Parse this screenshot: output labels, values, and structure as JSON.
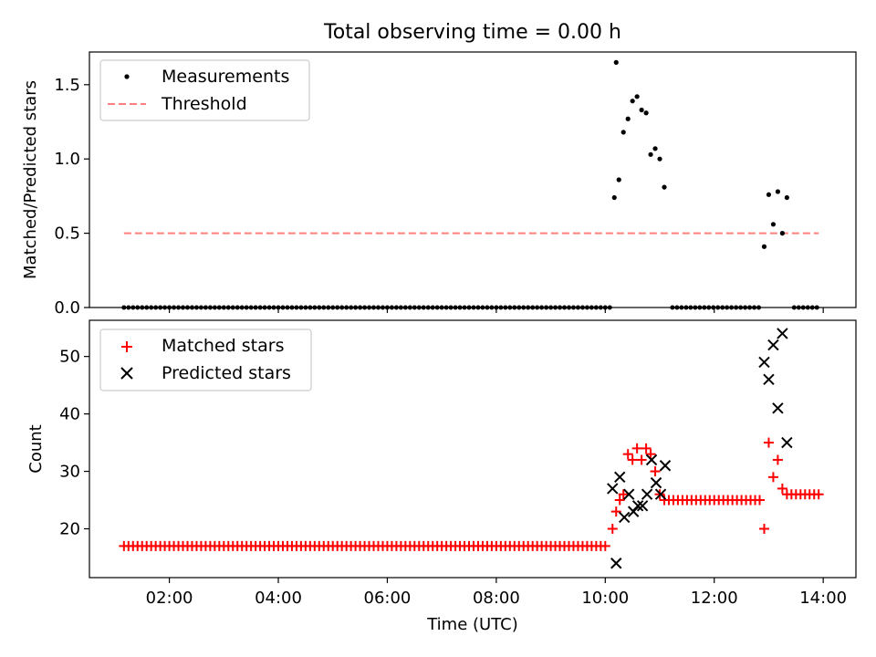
{
  "chart_data": [
    {
      "type": "scatter",
      "title": "Total observing time = 0.00 h",
      "xlabel": "",
      "ylabel": "Matched/Predicted stars",
      "xlim": [
        "00:32",
        "14:36"
      ],
      "ylim": [
        0,
        1.72
      ],
      "yticks": [
        "0.0",
        "0.5",
        "1.0",
        "1.5"
      ],
      "legend_position": "upper-left",
      "threshold": {
        "name": "Threshold",
        "value": 0.5,
        "x_start": "01:10",
        "x_end": "13:55",
        "color": "#ff7f7f"
      },
      "series": [
        {
          "name": "Measurements",
          "color": "#000000",
          "zero_segments": [
            [
              "01:10",
              "10:06"
            ],
            [
              "11:14",
              "12:51"
            ],
            [
              "13:28",
              "13:56"
            ]
          ],
          "zero_step_minutes": 5,
          "points": [
            {
              "x": "10:10",
              "y": 0.74
            },
            {
              "x": "10:15",
              "y": 0.86
            },
            {
              "x": "10:20",
              "y": 1.18
            },
            {
              "x": "10:25",
              "y": 1.27
            },
            {
              "x": "10:30",
              "y": 1.39
            },
            {
              "x": "10:35",
              "y": 1.42
            },
            {
              "x": "10:40",
              "y": 1.33
            },
            {
              "x": "10:45",
              "y": 1.31
            },
            {
              "x": "10:50",
              "y": 1.03
            },
            {
              "x": "10:55",
              "y": 1.07
            },
            {
              "x": "11:00",
              "y": 1.0
            },
            {
              "x": "11:05",
              "y": 0.81
            },
            {
              "x": "12:55",
              "y": 0.41
            },
            {
              "x": "13:00",
              "y": 0.76
            },
            {
              "x": "13:05",
              "y": 0.56
            },
            {
              "x": "13:10",
              "y": 0.78
            },
            {
              "x": "13:15",
              "y": 0.5
            },
            {
              "x": "13:20",
              "y": 0.74
            },
            {
              "x": "10:12",
              "y": 1.65
            }
          ]
        }
      ]
    },
    {
      "type": "scatter",
      "title": "",
      "xlabel": "Time (UTC)",
      "ylabel": "Count",
      "xlim": [
        "00:32",
        "14:36"
      ],
      "ylim": [
        11.5,
        56.3
      ],
      "yticks": [
        "20",
        "30",
        "40",
        "50"
      ],
      "xticks": [
        "02:00",
        "04:00",
        "06:00",
        "08:00",
        "10:00",
        "12:00",
        "14:00"
      ],
      "legend_position": "upper-left",
      "series": [
        {
          "name": "Matched stars",
          "marker": "plus",
          "color": "#ff0000",
          "flat_segments": [
            {
              "from": "01:10",
              "to": "10:03",
              "y": 17
            },
            {
              "from": "11:10",
              "to": "12:50",
              "y": 25
            },
            {
              "from": "13:25",
              "to": "13:56",
              "y": 26
            }
          ],
          "flat_step_minutes": 5,
          "points": [
            {
              "x": "10:08",
              "y": 20
            },
            {
              "x": "10:12",
              "y": 23
            },
            {
              "x": "10:16",
              "y": 25
            },
            {
              "x": "10:20",
              "y": 26
            },
            {
              "x": "10:25",
              "y": 33
            },
            {
              "x": "10:30",
              "y": 32
            },
            {
              "x": "10:35",
              "y": 34
            },
            {
              "x": "10:40",
              "y": 32
            },
            {
              "x": "10:45",
              "y": 34
            },
            {
              "x": "10:50",
              "y": 33
            },
            {
              "x": "10:55",
              "y": 30
            },
            {
              "x": "11:00",
              "y": 26
            },
            {
              "x": "11:05",
              "y": 25
            },
            {
              "x": "12:55",
              "y": 20
            },
            {
              "x": "13:00",
              "y": 35
            },
            {
              "x": "13:05",
              "y": 29
            },
            {
              "x": "13:10",
              "y": 32
            },
            {
              "x": "13:15",
              "y": 27
            },
            {
              "x": "13:20",
              "y": 26
            }
          ]
        },
        {
          "name": "Predicted stars",
          "marker": "x",
          "color": "#000000",
          "points": [
            {
              "x": "10:08",
              "y": 27
            },
            {
              "x": "10:12",
              "y": 14
            },
            {
              "x": "10:16",
              "y": 29
            },
            {
              "x": "10:21",
              "y": 22
            },
            {
              "x": "10:26",
              "y": 26
            },
            {
              "x": "10:31",
              "y": 23
            },
            {
              "x": "10:36",
              "y": 24
            },
            {
              "x": "10:41",
              "y": 24
            },
            {
              "x": "10:46",
              "y": 26
            },
            {
              "x": "10:51",
              "y": 32
            },
            {
              "x": "10:56",
              "y": 28
            },
            {
              "x": "11:01",
              "y": 26
            },
            {
              "x": "11:06",
              "y": 31
            },
            {
              "x": "12:55",
              "y": 49
            },
            {
              "x": "13:00",
              "y": 46
            },
            {
              "x": "13:05",
              "y": 52
            },
            {
              "x": "13:10",
              "y": 41
            },
            {
              "x": "13:15",
              "y": 54
            },
            {
              "x": "13:20",
              "y": 35
            }
          ]
        }
      ]
    }
  ]
}
